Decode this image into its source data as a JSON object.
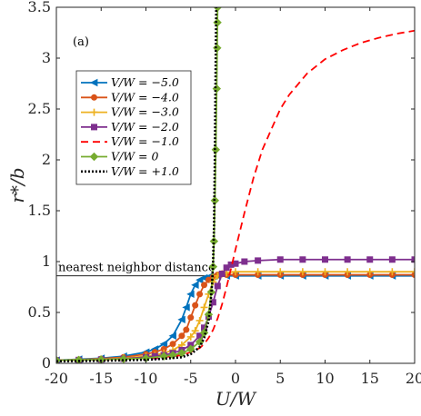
{
  "chart_data": {
    "type": "line",
    "panel_label": "(a)",
    "xlabel": "U/W",
    "ylabel": "r*/b",
    "xlim": [
      -20,
      20
    ],
    "ylim": [
      0,
      3.5
    ],
    "xticks": [
      -20,
      -15,
      -10,
      -5,
      0,
      5,
      10,
      15,
      20
    ],
    "yticks": [
      0,
      0.5,
      1,
      1.5,
      2,
      2.5,
      3,
      3.5
    ],
    "xtick_labels": [
      "-20",
      "-15",
      "-10",
      "-5",
      "0",
      "5",
      "10",
      "15",
      "20"
    ],
    "ytick_labels": [
      "0",
      "0.5",
      "1",
      "1.5",
      "2",
      "2.5",
      "3",
      "3.5"
    ],
    "grid": false,
    "legend_position": "upper-left",
    "reference_line": {
      "y": 0.86,
      "label": "nearest neighbor distance",
      "color": "#000000"
    },
    "series": [
      {
        "name": "V/W = −5.0",
        "color": "#0072BD",
        "dash": "solid",
        "marker": "triangle-left",
        "x": [
          -20,
          -17.5,
          -15,
          -12.5,
          -10,
          -9,
          -8,
          -7,
          -6,
          -5.5,
          -5,
          -4.5,
          -4,
          -3.5,
          -3,
          -2.5,
          -2,
          -1,
          0,
          2.5,
          5,
          7.5,
          10,
          12.5,
          15,
          17.5,
          20
        ],
        "y": [
          0.03,
          0.04,
          0.05,
          0.07,
          0.11,
          0.14,
          0.19,
          0.27,
          0.43,
          0.55,
          0.68,
          0.77,
          0.82,
          0.84,
          0.85,
          0.855,
          0.86,
          0.86,
          0.86,
          0.86,
          0.86,
          0.86,
          0.86,
          0.86,
          0.86,
          0.86,
          0.86
        ]
      },
      {
        "name": "V/W = −4.0",
        "color": "#D95319",
        "dash": "solid",
        "marker": "circle",
        "x": [
          -20,
          -17.5,
          -15,
          -12.5,
          -10,
          -9,
          -8,
          -7,
          -6,
          -5.5,
          -5,
          -4.5,
          -4,
          -3.5,
          -3,
          -2.5,
          -2,
          -1,
          0,
          2.5,
          5,
          7.5,
          10,
          12.5,
          15,
          17.5,
          20
        ],
        "y": [
          0.03,
          0.035,
          0.045,
          0.06,
          0.09,
          0.11,
          0.14,
          0.19,
          0.27,
          0.33,
          0.45,
          0.57,
          0.68,
          0.77,
          0.82,
          0.85,
          0.87,
          0.87,
          0.87,
          0.87,
          0.87,
          0.87,
          0.87,
          0.87,
          0.87,
          0.87,
          0.87
        ]
      },
      {
        "name": "V/W = −3.0",
        "color": "#EDB120",
        "dash": "solid",
        "marker": "plus",
        "x": [
          -20,
          -17.5,
          -15,
          -12.5,
          -10,
          -9,
          -8,
          -7,
          -6,
          -5,
          -4.5,
          -4,
          -3.5,
          -3,
          -2.5,
          -2,
          -1.5,
          -1,
          0,
          2.5,
          5,
          7.5,
          10,
          12.5,
          15,
          17.5,
          20
        ],
        "y": [
          0.03,
          0.035,
          0.04,
          0.05,
          0.07,
          0.08,
          0.1,
          0.13,
          0.18,
          0.26,
          0.32,
          0.42,
          0.55,
          0.68,
          0.8,
          0.86,
          0.88,
          0.89,
          0.9,
          0.9,
          0.9,
          0.9,
          0.9,
          0.9,
          0.9,
          0.9,
          0.9
        ]
      },
      {
        "name": "V/W = −2.0",
        "color": "#7E2F8E",
        "dash": "solid",
        "marker": "square",
        "x": [
          -20,
          -17.5,
          -15,
          -12.5,
          -10,
          -9,
          -8,
          -7,
          -6,
          -5,
          -4,
          -3.5,
          -3,
          -2.5,
          -2,
          -1.5,
          -1,
          -0.5,
          0,
          1,
          2.5,
          5,
          7.5,
          10,
          12.5,
          15,
          17.5,
          20
        ],
        "y": [
          0.03,
          0.033,
          0.038,
          0.045,
          0.06,
          0.07,
          0.08,
          0.1,
          0.13,
          0.18,
          0.27,
          0.35,
          0.46,
          0.6,
          0.76,
          0.88,
          0.94,
          0.97,
          0.98,
          1.0,
          1.01,
          1.02,
          1.02,
          1.02,
          1.02,
          1.02,
          1.02,
          1.02
        ]
      },
      {
        "name": "V/W = −1.0",
        "color": "#FF0000",
        "dash": "dashed",
        "marker": "none",
        "x": [
          -20,
          -15,
          -10,
          -8,
          -6,
          -5,
          -4,
          -3.5,
          -3,
          -2.5,
          -2,
          -1.5,
          -1,
          -0.5,
          0,
          1,
          2,
          3,
          4,
          5,
          6,
          8,
          10,
          12,
          14,
          16,
          18,
          20
        ],
        "y": [
          0.03,
          0.035,
          0.05,
          0.06,
          0.08,
          0.11,
          0.15,
          0.19,
          0.25,
          0.33,
          0.44,
          0.58,
          0.75,
          0.93,
          1.12,
          1.48,
          1.82,
          2.1,
          2.3,
          2.5,
          2.64,
          2.85,
          2.99,
          3.08,
          3.15,
          3.2,
          3.24,
          3.27
        ]
      },
      {
        "name": "V/W = 0",
        "color": "#77AC30",
        "dash": "solid",
        "marker": "diamond",
        "x": [
          -20,
          -17.5,
          -15,
          -12.5,
          -10,
          -8,
          -7,
          -6,
          -5,
          -4,
          -3.5,
          -3,
          -2.7,
          -2.5,
          -2.4,
          -2.3,
          -2.2,
          -2.1,
          -2.05,
          -2.02,
          -2.0
        ],
        "y": [
          0.03,
          0.033,
          0.037,
          0.043,
          0.05,
          0.07,
          0.08,
          0.1,
          0.14,
          0.21,
          0.3,
          0.48,
          0.7,
          0.95,
          1.2,
          1.6,
          2.1,
          2.7,
          3.1,
          3.35,
          3.5
        ]
      },
      {
        "name": "V/W = +1.0",
        "color": "#000000",
        "dash": "dotted",
        "marker": "none",
        "x": [
          -20,
          -15,
          -10,
          -8,
          -6,
          -5,
          -4,
          -3.5,
          -3,
          -2.8,
          -2.6,
          -2.5,
          -2.4,
          -2.35,
          -2.3,
          -2.25,
          -2.2,
          -2.15
        ],
        "y": [
          0.02,
          0.025,
          0.035,
          0.045,
          0.06,
          0.09,
          0.16,
          0.25,
          0.42,
          0.58,
          0.8,
          1.0,
          1.35,
          1.7,
          2.1,
          2.6,
          3.1,
          3.5
        ]
      }
    ]
  }
}
